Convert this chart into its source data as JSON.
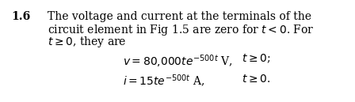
{
  "background_color": "#ffffff",
  "label": "1.6",
  "label_fontsize": 10,
  "label_fontweight": "bold",
  "para_lines": [
    "The voltage and current at the terminals of the",
    "circuit element in Fig 1.5 are zero for $t < 0$. For",
    "$t \\geq 0$, they are"
  ],
  "para_fontsize": 10,
  "eq1_left": "$v = 80{,}000te^{-500t}$ V,",
  "eq1_right": "$t \\geq 0$;",
  "eq2_left": "$i = 15te^{-500t}$ A,",
  "eq2_right": "$t \\geq 0$.",
  "eq_fontsize": 10
}
